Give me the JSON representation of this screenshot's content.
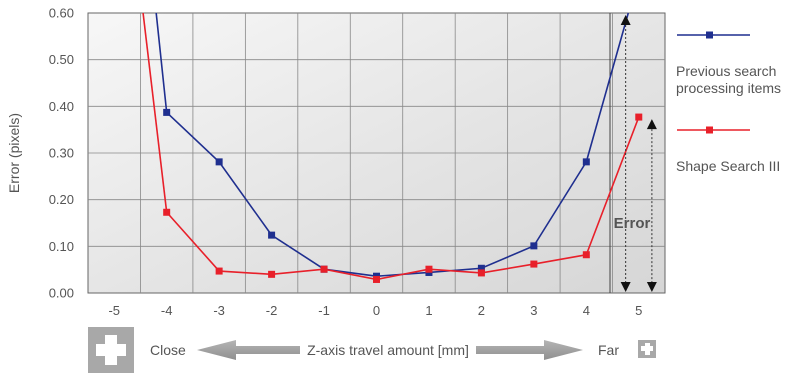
{
  "chart_data": {
    "type": "line",
    "xlabel": "Z-axis travel amount [mm]",
    "ylabel": "Error (pixels)",
    "x_ticks": [
      "-5",
      "-4",
      "-3",
      "-2",
      "-1",
      "0",
      "1",
      "2",
      "3",
      "4",
      "5"
    ],
    "y_ticks": [
      "0.00",
      "0.10",
      "0.20",
      "0.30",
      "0.40",
      "0.50",
      "0.60"
    ],
    "xlim": [
      -5.5,
      5.5
    ],
    "ylim": [
      0,
      0.6
    ],
    "grid": true,
    "legend_position": "right",
    "series": [
      {
        "name": "Previous search processing items",
        "name_lines": [
          "Previous search",
          "processing items"
        ],
        "color": "#1f2f8f",
        "x": [
          -4,
          -3,
          -2,
          -1,
          0,
          1,
          2,
          3,
          4
        ],
        "y": [
          0.387,
          0.281,
          0.124,
          0.051,
          0.036,
          0.044,
          0.053,
          0.101,
          0.281
        ],
        "upper_segments": [
          {
            "from": [
              -4,
              0.387
            ],
            "to": [
              -4.2,
              0.6
            ]
          },
          {
            "from": [
              4,
              0.281
            ],
            "to": [
              4.8,
              0.6
            ]
          }
        ]
      },
      {
        "name": "Shape Search III",
        "name_lines": [
          "Shape Search III"
        ],
        "color": "#e8202a",
        "x": [
          -4,
          -3,
          -2,
          -1,
          0,
          1,
          2,
          3,
          4,
          5
        ],
        "y": [
          0.173,
          0.047,
          0.04,
          0.051,
          0.029,
          0.051,
          0.043,
          0.062,
          0.082,
          0.377
        ],
        "upper_segments": [
          {
            "from": [
              -4,
              0.173
            ],
            "to": [
              -4.45,
              0.6
            ]
          }
        ]
      }
    ],
    "annotations": {
      "error_label": "Error",
      "error_arrows": [
        {
          "x": 4.75,
          "y_top": 0.6,
          "y_bottom": 0
        },
        {
          "x": 5.25,
          "y_top": 0.377,
          "y_bottom": 0
        }
      ]
    },
    "direction": {
      "close_label": "Close",
      "far_label": "Far"
    }
  }
}
